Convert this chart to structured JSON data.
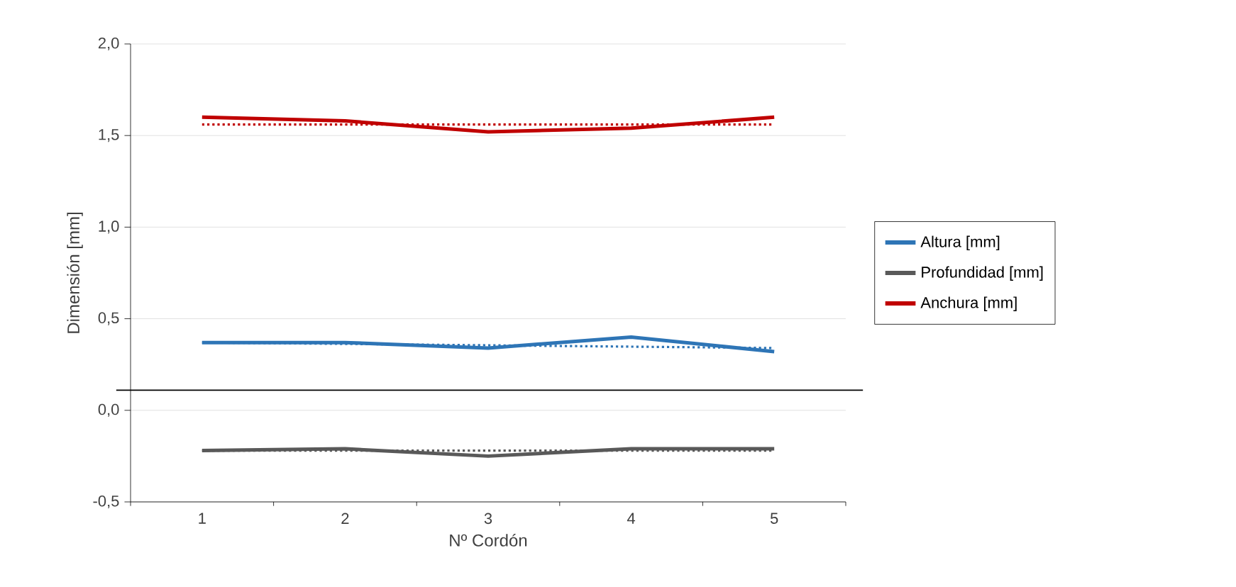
{
  "chart_data": {
    "type": "line",
    "xlabel": "Nº Cordón",
    "ylabel": "Dimensión [mm]",
    "categories": [
      "1",
      "2",
      "3",
      "4",
      "5"
    ],
    "series": [
      {
        "name": "Altura [mm]",
        "color": "#2e75b6",
        "values": [
          0.37,
          0.37,
          0.34,
          0.4,
          0.32
        ]
      },
      {
        "name": "Profundidad [mm]",
        "color": "#595959",
        "values": [
          -0.22,
          -0.21,
          -0.25,
          -0.21,
          -0.21
        ]
      },
      {
        "name": "Anchura [mm]",
        "color": "#c00000",
        "values": [
          1.6,
          1.58,
          1.52,
          1.54,
          1.6
        ]
      },
      {
        "color": "#2e75b6",
        "line_style": "dotted",
        "values": [
          0.37,
          null,
          null,
          null,
          0.34
        ]
      },
      {
        "color": "#595959",
        "line_style": "dotted",
        "values": [
          -0.22,
          null,
          null,
          null,
          -0.22
        ]
      },
      {
        "color": "#c00000",
        "line_style": "dotted",
        "values": [
          1.56,
          null,
          null,
          null,
          1.56
        ]
      }
    ],
    "ylim": [
      -0.5,
      2.0
    ],
    "yticks": [
      {
        "value": -0.5,
        "label": "-0,5"
      },
      {
        "value": 0,
        "label": "0,0"
      },
      {
        "value": 0.5,
        "label": "0,5"
      },
      {
        "value": 1.0,
        "label": "1,0"
      },
      {
        "value": 1.5,
        "label": "1,5"
      },
      {
        "value": 2.0,
        "label": "2,0"
      }
    ],
    "ref_lines": [
      {
        "axis": "y",
        "value": 0.11,
        "color": "#000000"
      }
    ],
    "grid": "y",
    "legend": "right",
    "line_style": "solid",
    "marker": "none"
  }
}
